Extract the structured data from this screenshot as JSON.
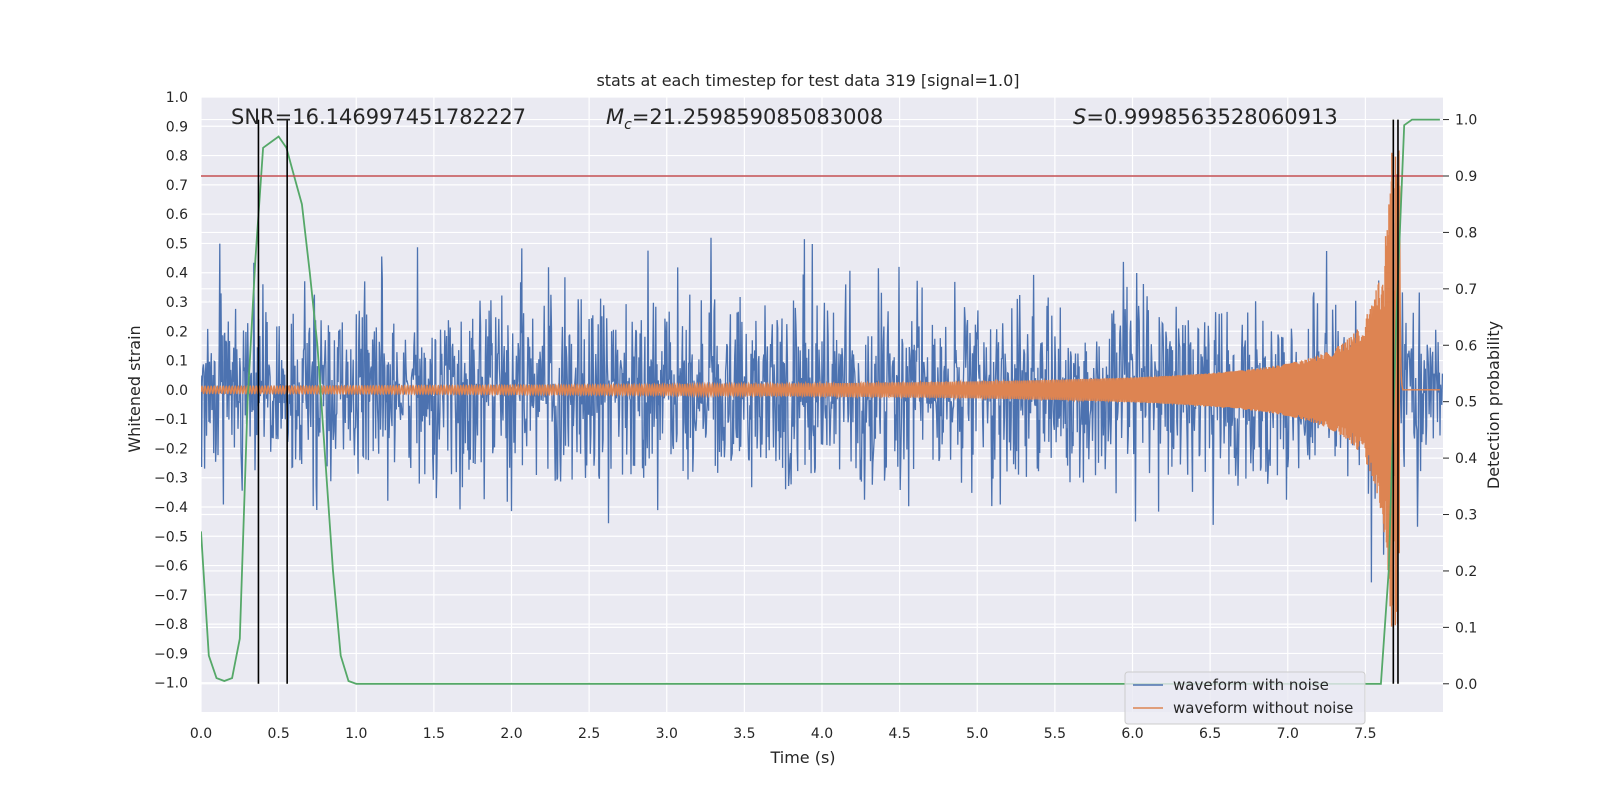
{
  "chart_data": {
    "type": "line",
    "title": "stats at each timestep for test data 319 [signal=1.0]",
    "xlabel": "Time (s)",
    "ylabel": "Whitened strain",
    "ylabel_right": "Detection probability",
    "xlim": [
      0.0,
      8.0
    ],
    "ylim": [
      -1.1,
      1.0
    ],
    "ylim_right": [
      -0.05,
      1.04
    ],
    "x_ticks": [
      0.0,
      0.5,
      1.0,
      1.5,
      2.0,
      2.5,
      3.0,
      3.5,
      4.0,
      4.5,
      5.0,
      5.5,
      6.0,
      6.5,
      7.0,
      7.5
    ],
    "x_tick_labels": [
      "0.0",
      "0.5",
      "1.0",
      "1.5",
      "2.0",
      "2.5",
      "3.0",
      "3.5",
      "4.0",
      "4.5",
      "5.0",
      "5.5",
      "6.0",
      "6.5",
      "7.0",
      "7.5"
    ],
    "y_ticks": [
      -1.0,
      -0.9,
      -0.8,
      -0.7,
      -0.6,
      -0.5,
      -0.4,
      -0.3,
      -0.2,
      -0.1,
      0.0,
      0.1,
      0.2,
      0.3,
      0.4,
      0.5,
      0.6,
      0.7,
      0.8,
      0.9,
      1.0
    ],
    "y_tick_labels": [
      "−1.0",
      "−0.9",
      "−0.8",
      "−0.7",
      "−0.6",
      "−0.5",
      "−0.4",
      "−0.3",
      "−0.2",
      "−0.1",
      "0.0",
      "0.1",
      "0.2",
      "0.3",
      "0.4",
      "0.5",
      "0.6",
      "0.7",
      "0.8",
      "0.9",
      "1.0"
    ],
    "y_right_ticks": [
      0.0,
      0.1,
      0.2,
      0.3,
      0.4,
      0.5,
      0.6,
      0.7,
      0.8,
      0.9,
      1.0
    ],
    "y_right_tick_labels": [
      "0.0",
      "0.1",
      "0.2",
      "0.3",
      "0.4",
      "0.5",
      "0.6",
      "0.7",
      "0.8",
      "0.9",
      "1.0"
    ],
    "grid": true,
    "annotations": {
      "snr": "SNR=16.146997451782227",
      "mc_symbol": "M",
      "mc_sub": "c",
      "mc_value": "=21.259859085083008",
      "s_symbol": "S",
      "s_value": "=0.9998563528060913"
    },
    "threshold_y_right": 0.9,
    "vertical_lines_x": [
      0.37,
      0.555,
      7.68,
      7.71
    ],
    "series": [
      {
        "name": "waveform with noise",
        "color": "#4c72b0",
        "kind": "noise",
        "sample_rate": 256,
        "duration": 8.0,
        "typical_amplitude": 0.25,
        "max_amplitude": 0.76,
        "min_amplitude": -0.67
      },
      {
        "name": "waveform without noise",
        "color": "#dd8452",
        "kind": "chirp",
        "merger_time": 7.72,
        "peak_amplitude": 0.82
      },
      {
        "name": "",
        "color": "#55a868",
        "kind": "probability",
        "axis": "right",
        "x": [
          0.0,
          0.05,
          0.1,
          0.15,
          0.2,
          0.25,
          0.3,
          0.35,
          0.4,
          0.45,
          0.5,
          0.55,
          0.6,
          0.65,
          0.7,
          0.75,
          0.8,
          0.85,
          0.9,
          0.95,
          1.0,
          7.6,
          7.65,
          7.7,
          7.75,
          7.8,
          7.98
        ],
        "y": [
          0.27,
          0.05,
          0.01,
          0.005,
          0.01,
          0.08,
          0.5,
          0.75,
          0.95,
          0.96,
          0.97,
          0.95,
          0.9,
          0.85,
          0.73,
          0.6,
          0.4,
          0.2,
          0.05,
          0.005,
          0.0,
          0.0,
          0.2,
          0.65,
          0.99,
          1.0,
          1.0
        ]
      }
    ],
    "legend": {
      "position": "lower-right",
      "entries": [
        "waveform with noise",
        "waveform without noise"
      ]
    },
    "colors": {
      "background": "#eaeaf2",
      "grid": "#ffffff",
      "threshold": "#c44e52",
      "vline": "#000000"
    }
  }
}
